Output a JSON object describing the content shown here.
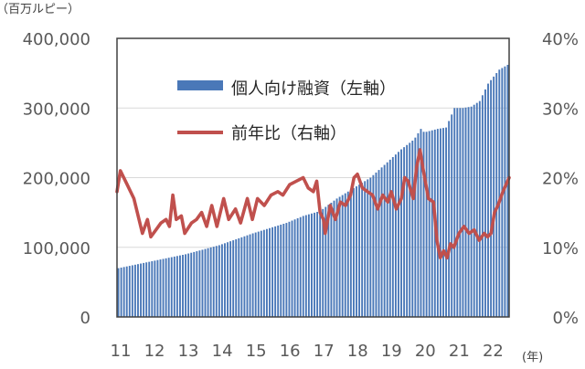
{
  "chart_data": {
    "type": "bar+line",
    "left_unit_label": "（百万ルピー）",
    "x_unit_label": "(年)",
    "x_axis": {
      "start": 2011.0,
      "end": 2022.5833,
      "tick_labels": [
        "11",
        "12",
        "13",
        "14",
        "15",
        "16",
        "17",
        "18",
        "19",
        "20",
        "21",
        "22"
      ]
    },
    "y_left": {
      "min": 0,
      "max": 400000,
      "tick_labels": [
        "0",
        "100,000",
        "200,000",
        "300,000",
        "400,000"
      ]
    },
    "y_right": {
      "min": 0,
      "max": 40,
      "tick_labels": [
        "0%",
        "10%",
        "20%",
        "30%",
        "40%"
      ]
    },
    "grid": "horizontal",
    "legend_position": "top-center",
    "colors": {
      "bars": "#4a78b8",
      "line": "#c0504d",
      "grid": "#d9d9d9",
      "frame": "#404040"
    },
    "series": [
      {
        "name": "個人向け融資（左軸）",
        "type": "bar",
        "axis": "left",
        "anchors": [
          [
            2011.0,
            70000
          ],
          [
            2012.0,
            80000
          ],
          [
            2013.0,
            90000
          ],
          [
            2014.0,
            103000
          ],
          [
            2015.0,
            120000
          ],
          [
            2016.0,
            135000
          ],
          [
            2016.5,
            145000
          ],
          [
            2017.0,
            152000
          ],
          [
            2017.5,
            170000
          ],
          [
            2018.0,
            185000
          ],
          [
            2018.5,
            200000
          ],
          [
            2019.0,
            222000
          ],
          [
            2019.4,
            240000
          ],
          [
            2019.8,
            255000
          ],
          [
            2020.0,
            270000
          ],
          [
            2020.1,
            265000
          ],
          [
            2020.5,
            270000
          ],
          [
            2020.75,
            272000
          ],
          [
            2021.0,
            300000
          ],
          [
            2021.25,
            300000
          ],
          [
            2021.5,
            302000
          ],
          [
            2021.75,
            310000
          ],
          [
            2022.0,
            335000
          ],
          [
            2022.33,
            355000
          ],
          [
            2022.5833,
            362000
          ]
        ]
      },
      {
        "name": "前年比（右軸）",
        "type": "line",
        "axis": "right",
        "points": [
          [
            2011.0,
            18.0
          ],
          [
            2011.1,
            21.0
          ],
          [
            2011.3,
            19.0
          ],
          [
            2011.5,
            17.0
          ],
          [
            2011.75,
            12.0
          ],
          [
            2011.9,
            14.0
          ],
          [
            2012.0,
            11.5
          ],
          [
            2012.15,
            12.5
          ],
          [
            2012.3,
            13.5
          ],
          [
            2012.45,
            14.0
          ],
          [
            2012.55,
            13.0
          ],
          [
            2012.65,
            17.5
          ],
          [
            2012.75,
            14.0
          ],
          [
            2012.9,
            14.5
          ],
          [
            2013.0,
            12.0
          ],
          [
            2013.2,
            13.5
          ],
          [
            2013.35,
            14.0
          ],
          [
            2013.5,
            15.0
          ],
          [
            2013.65,
            13.0
          ],
          [
            2013.8,
            16.0
          ],
          [
            2013.95,
            13.0
          ],
          [
            2014.15,
            17.0
          ],
          [
            2014.3,
            14.0
          ],
          [
            2014.5,
            15.5
          ],
          [
            2014.65,
            13.5
          ],
          [
            2014.85,
            17.0
          ],
          [
            2015.0,
            14.0
          ],
          [
            2015.15,
            17.0
          ],
          [
            2015.35,
            16.0
          ],
          [
            2015.55,
            17.5
          ],
          [
            2015.75,
            18.0
          ],
          [
            2015.9,
            17.5
          ],
          [
            2016.1,
            19.0
          ],
          [
            2016.3,
            19.5
          ],
          [
            2016.5,
            20.0
          ],
          [
            2016.65,
            18.5
          ],
          [
            2016.8,
            18.0
          ],
          [
            2016.9,
            19.5
          ],
          [
            2017.0,
            15.0
          ],
          [
            2017.1,
            14.0
          ],
          [
            2017.15,
            12.0
          ],
          [
            2017.3,
            16.0
          ],
          [
            2017.45,
            14.0
          ],
          [
            2017.6,
            16.5
          ],
          [
            2017.75,
            16.0
          ],
          [
            2017.9,
            17.5
          ],
          [
            2018.0,
            20.0
          ],
          [
            2018.1,
            20.5
          ],
          [
            2018.25,
            18.5
          ],
          [
            2018.4,
            18.0
          ],
          [
            2018.55,
            17.5
          ],
          [
            2018.7,
            15.5
          ],
          [
            2018.85,
            17.5
          ],
          [
            2019.0,
            16.5
          ],
          [
            2019.1,
            18.0
          ],
          [
            2019.25,
            15.5
          ],
          [
            2019.4,
            17.0
          ],
          [
            2019.5,
            20.0
          ],
          [
            2019.6,
            19.5
          ],
          [
            2019.75,
            17.0
          ],
          [
            2019.85,
            21.5
          ],
          [
            2019.95,
            24.0
          ],
          [
            2020.05,
            21.0
          ],
          [
            2020.2,
            17.0
          ],
          [
            2020.35,
            16.5
          ],
          [
            2020.45,
            11.0
          ],
          [
            2020.55,
            8.5
          ],
          [
            2020.65,
            9.5
          ],
          [
            2020.75,
            8.5
          ],
          [
            2020.85,
            10.5
          ],
          [
            2020.95,
            10.0
          ],
          [
            2021.1,
            12.0
          ],
          [
            2021.25,
            13.0
          ],
          [
            2021.4,
            12.0
          ],
          [
            2021.55,
            12.5
          ],
          [
            2021.7,
            11.0
          ],
          [
            2021.85,
            12.0
          ],
          [
            2021.95,
            11.5
          ],
          [
            2022.05,
            12.0
          ],
          [
            2022.15,
            15.0
          ],
          [
            2022.25,
            16.0
          ],
          [
            2022.4,
            18.0
          ],
          [
            2022.5833,
            20.0
          ]
        ]
      }
    ]
  }
}
